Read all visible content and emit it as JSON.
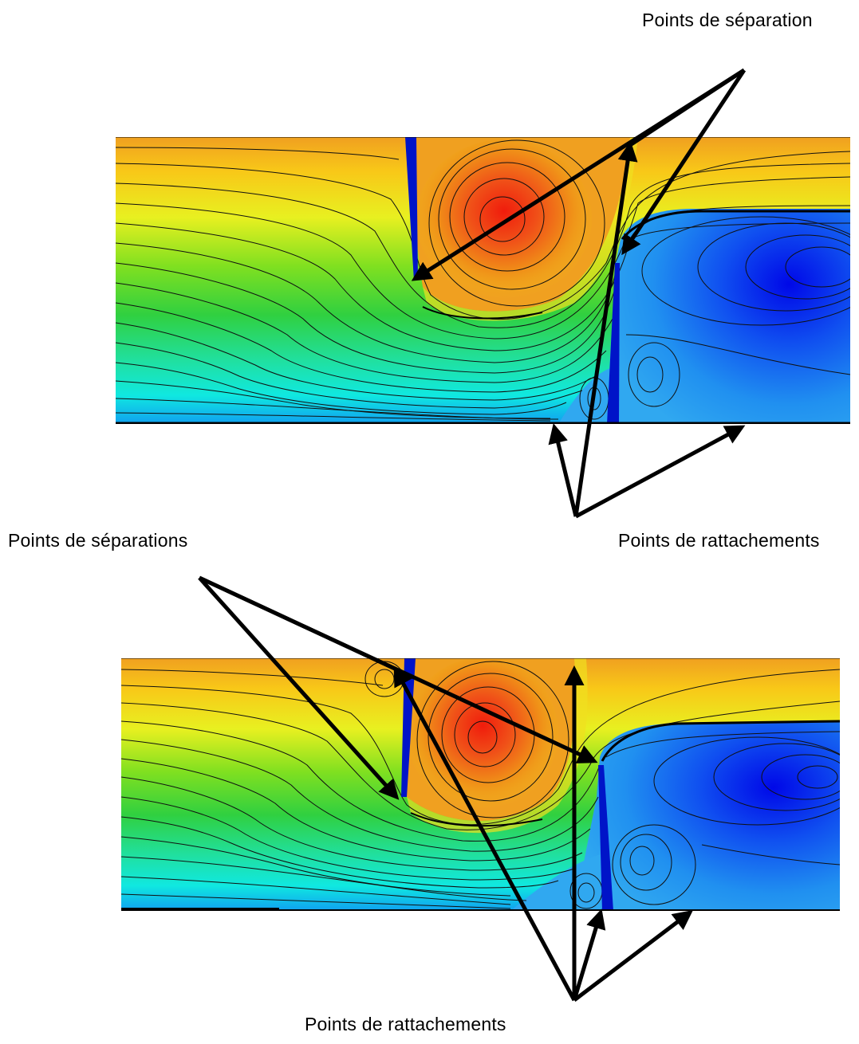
{
  "labels": {
    "top_separation": "Points de séparation",
    "middle_separations": "Points de séparations",
    "middle_attachments": "Points de rattachements",
    "bottom_attachments": "Points de rattachements"
  },
  "colors": {
    "colormap": [
      "#0000e0",
      "#0a5cf0",
      "#00c8f0",
      "#18f0c0",
      "#30d830",
      "#a8e818",
      "#f0f010",
      "#f8b818",
      "#f08018",
      "#f02810"
    ],
    "plate": "#0014c8",
    "wall": "#000000",
    "arrow": "#000000",
    "streamline": "#101010"
  }
}
